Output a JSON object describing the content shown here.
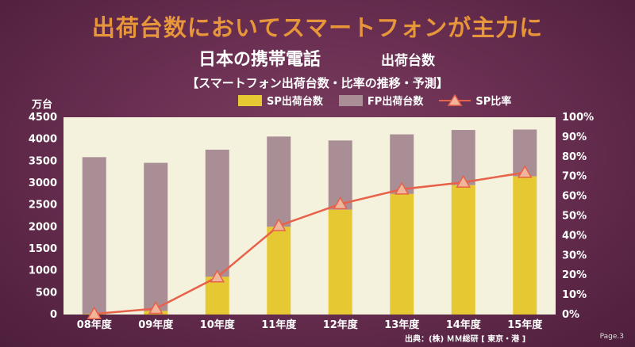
{
  "header": {
    "headline": "出荷台数においてスマートフォンが主力に",
    "subtitle": "日本の携帯電話",
    "subtitle2": "出荷台数",
    "note": "【スマートフォン出荷台数・比率の推移・予測】"
  },
  "footer": {
    "source": "出典：(株) ＭＭ総研 [ 東京・港 ]",
    "page": "Page.3"
  },
  "colors": {
    "sp": "#e6c833",
    "fp": "#aa8e96",
    "ratio_line": "#e8614a",
    "plot_bg": "#f4f2dc"
  },
  "chart_data": {
    "type": "bar",
    "stacked": true,
    "y_unit_label": "万台",
    "categories": [
      "08年度",
      "09年度",
      "10年度",
      "11年度",
      "12年度",
      "13年度",
      "14年度",
      "15年度"
    ],
    "series": [
      {
        "name": "SP出荷台数",
        "values": [
          10,
          80,
          860,
          2000,
          2390,
          2750,
          2950,
          3150
        ]
      },
      {
        "name": "FP出荷台数",
        "values": [
          3580,
          3380,
          2900,
          2060,
          1580,
          1360,
          1260,
          1070
        ]
      },
      {
        "name": "SP比率",
        "axis": "right",
        "line": true,
        "values": [
          0.3,
          3,
          19,
          45,
          56,
          63.5,
          67,
          72
        ]
      }
    ],
    "ylim": [
      0,
      4500
    ],
    "yticks": [
      0,
      500,
      1000,
      1500,
      2000,
      2500,
      3000,
      3500,
      4000,
      4500
    ],
    "y2lim": [
      0,
      100
    ],
    "y2ticks": [
      "0%",
      "10%",
      "20%",
      "30%",
      "40%",
      "50%",
      "60%",
      "70%",
      "80%",
      "90%",
      "100%"
    ],
    "legend_position": "top",
    "grid": false
  }
}
